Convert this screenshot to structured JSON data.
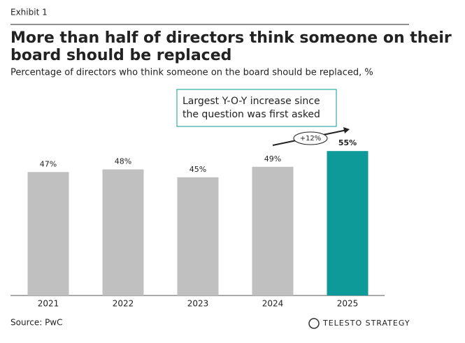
{
  "exhibit": "Exhibit 1",
  "chart_data": {
    "type": "bar",
    "title": "More than half of directors think someone on their board should be replaced",
    "subtitle": "Percentage of directors who think someone on the board should be replaced, %",
    "categories": [
      "2021",
      "2022",
      "2023",
      "2024",
      "2025"
    ],
    "values": [
      47,
      48,
      45,
      49,
      55
    ],
    "value_labels": [
      "47%",
      "48%",
      "45%",
      "49%",
      "55%"
    ],
    "colors": [
      "#c0c0c0",
      "#c0c0c0",
      "#c0c0c0",
      "#c0c0c0",
      "#0e9a98"
    ],
    "annotation": "Largest Y-O-Y increase since the question was first asked",
    "change_label": "+12%"
  },
  "source": "Source: PwC",
  "brand": "TELESTO STRATEGY"
}
